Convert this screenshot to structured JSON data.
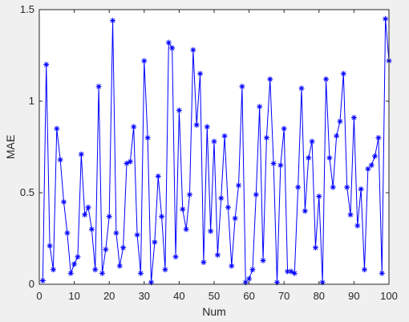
{
  "chart_data": {
    "type": "line",
    "title": "",
    "xlabel": "Num",
    "ylabel": "MAE",
    "xlim": [
      0,
      100
    ],
    "ylim": [
      0,
      1.5
    ],
    "xticks": [
      0,
      10,
      20,
      30,
      40,
      50,
      60,
      70,
      80,
      90,
      100
    ],
    "yticks": [
      0,
      0.5,
      1,
      1.5
    ],
    "xtick_labels": [
      "0",
      "10",
      "20",
      "30",
      "40",
      "50",
      "60",
      "70",
      "80",
      "90",
      "100"
    ],
    "ytick_labels": [
      "0",
      "0.5",
      "1",
      "1.5"
    ],
    "grid": false,
    "marker": "*",
    "series": [
      {
        "color": "#0000ff",
        "x": [
          1,
          2,
          3,
          4,
          5,
          6,
          7,
          8,
          9,
          10,
          11,
          12,
          13,
          14,
          15,
          16,
          17,
          18,
          19,
          20,
          21,
          22,
          23,
          24,
          25,
          26,
          27,
          28,
          29,
          30,
          31,
          32,
          33,
          34,
          35,
          36,
          37,
          38,
          39,
          40,
          41,
          42,
          43,
          44,
          45,
          46,
          47,
          48,
          49,
          50,
          51,
          52,
          53,
          54,
          55,
          56,
          57,
          58,
          59,
          60,
          61,
          62,
          63,
          64,
          65,
          66,
          67,
          68,
          69,
          70,
          71,
          72,
          73,
          74,
          75,
          76,
          77,
          78,
          79,
          80,
          81,
          82,
          83,
          84,
          85,
          86,
          87,
          88,
          89,
          90,
          91,
          92,
          93,
          94,
          95,
          96,
          97,
          98,
          99,
          100
        ],
        "values": [
          0.02,
          1.2,
          0.21,
          0.08,
          0.85,
          0.68,
          0.45,
          0.28,
          0.06,
          0.11,
          0.15,
          0.71,
          0.38,
          0.42,
          0.3,
          0.08,
          1.08,
          0.06,
          0.19,
          0.37,
          1.44,
          0.28,
          0.1,
          0.2,
          0.66,
          0.67,
          0.86,
          0.27,
          0.06,
          1.22,
          0.8,
          0.01,
          0.23,
          0.59,
          0.37,
          0.08,
          1.32,
          1.29,
          0.15,
          0.95,
          0.41,
          0.3,
          0.49,
          1.28,
          0.87,
          1.15,
          0.12,
          0.86,
          0.29,
          0.78,
          0.16,
          0.47,
          0.81,
          0.42,
          0.1,
          0.36,
          0.54,
          1.08,
          0.01,
          0.03,
          0.08,
          0.49,
          0.97,
          0.13,
          0.8,
          1.12,
          0.66,
          0.01,
          0.65,
          0.85,
          0.07,
          0.07,
          0.06,
          0.53,
          1.07,
          0.4,
          0.69,
          0.78,
          0.2,
          0.48,
          0.01,
          1.12,
          0.69,
          0.53,
          0.81,
          0.89,
          1.15,
          0.53,
          0.38,
          0.91,
          0.32,
          0.52,
          0.08,
          0.63,
          0.65,
          0.7,
          0.8,
          0.06,
          1.45,
          1.22
        ]
      }
    ]
  }
}
